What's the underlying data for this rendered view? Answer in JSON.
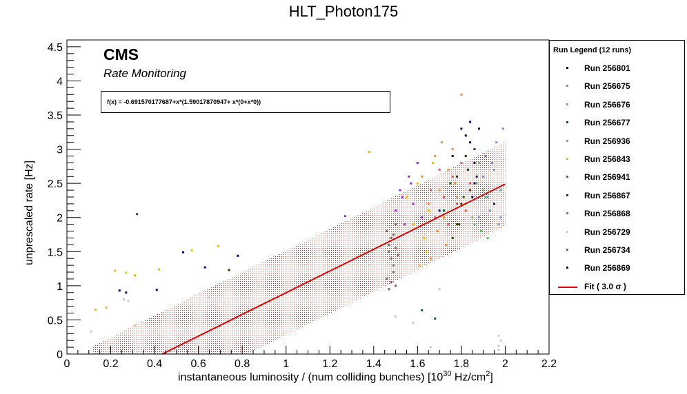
{
  "chart_data": {
    "type": "scatter",
    "title": "HLT_Photon175",
    "xlabel": "instantaneous luminosity / (num colliding bunches) [10",
    "xlabel_sup": "30",
    "xlabel_mid": " Hz/cm",
    "xlabel_sup2": "2",
    "xlabel_end": "]",
    "ylabel": "unprescaled rate [Hz]",
    "xlim": [
      0,
      2.2
    ],
    "ylim": [
      0,
      4.6
    ],
    "x_ticks": [
      "0",
      "0.2",
      "0.4",
      "0.6",
      "0.8",
      "1",
      "1.2",
      "1.4",
      "1.6",
      "1.8",
      "2",
      "2.2"
    ],
    "y_ticks": [
      "0",
      "0.5",
      "1",
      "1.5",
      "2",
      "2.5",
      "3",
      "3.5",
      "4",
      "4.5"
    ],
    "cms_label": "CMS",
    "cms_sublabel": "Rate Monitoring",
    "fit": {
      "formula_text": "f(x) = -0.691570177687+x*(1.59017870947+ x*(0+x*0))",
      "intercept": -0.691570177687,
      "slope": 1.59017870947,
      "band_sigma": 3.0,
      "band_halfwidth": 0.62,
      "x_range": [
        0.12,
        2.0
      ],
      "color": "#e60000",
      "band_color": "#c0392b"
    },
    "legend": {
      "title": "Run Legend (12 runs)",
      "entries": [
        {
          "label": "Run 256801",
          "color": "#000080"
        },
        {
          "label": "Run 256675",
          "color": "#6a8fe0"
        },
        {
          "label": "Run 256676",
          "color": "#5cc05c"
        },
        {
          "label": "Run 256677",
          "color": "#006400"
        },
        {
          "label": "Run 256936",
          "color": "#f08c30"
        },
        {
          "label": "Run 256843",
          "color": "#f5b800"
        },
        {
          "label": "Run 256941",
          "color": "#8a2be2"
        },
        {
          "label": "Run 256867",
          "color": "#3c2a00"
        },
        {
          "label": "Run 256868",
          "color": "#e05050"
        },
        {
          "label": "Run 256729",
          "color": "#c8c8c8"
        },
        {
          "label": "Run 256734",
          "color": "#7a5c5c"
        },
        {
          "label": "Run 256869",
          "color": "#000060"
        }
      ],
      "fit_label": "Fit ( 3.0  σ )"
    },
    "series": [
      {
        "name": "Run 256801",
        "color": "#000080",
        "points": [
          [
            0.24,
            0.93
          ],
          [
            0.27,
            0.9
          ],
          [
            0.53,
            1.49
          ],
          [
            0.41,
            0.94
          ],
          [
            0.63,
            1.27
          ],
          [
            0.78,
            1.44
          ],
          [
            1.76,
            2.9
          ],
          [
            1.8,
            3.3
          ],
          [
            1.84,
            3.4
          ],
          [
            1.86,
            2.5
          ],
          [
            1.95,
            2.2
          ],
          [
            1.7,
            2.1
          ]
        ]
      },
      {
        "name": "Run 256675",
        "color": "#6a8fe0",
        "points": [
          [
            1.88,
            2.0
          ],
          [
            1.9,
            2.6
          ],
          [
            1.92,
            2.3
          ],
          [
            1.94,
            2.8
          ],
          [
            1.96,
            3.1
          ],
          [
            1.98,
            2.4
          ],
          [
            1.99,
            3.3
          ],
          [
            1.97,
            1.9
          ],
          [
            1.93,
            2.1
          ],
          [
            1.91,
            2.9
          ],
          [
            1.95,
            2.7
          ],
          [
            1.98,
            2.0
          ]
        ]
      },
      {
        "name": "Run 256676",
        "color": "#5cc05c",
        "points": [
          [
            1.82,
            2.2
          ],
          [
            1.85,
            2.0
          ],
          [
            1.87,
            2.5
          ],
          [
            1.89,
            1.8
          ],
          [
            1.91,
            2.3
          ],
          [
            1.83,
            2.7
          ],
          [
            1.86,
            1.9
          ],
          [
            1.88,
            2.8
          ],
          [
            1.92,
            1.7
          ],
          [
            1.9,
            2.4
          ]
        ]
      },
      {
        "name": "Run 256677",
        "color": "#006400",
        "points": [
          [
            0.32,
            2.05
          ],
          [
            1.62,
            0.64
          ],
          [
            1.68,
            0.52
          ],
          [
            1.72,
            2.1
          ],
          [
            1.75,
            2.5
          ],
          [
            1.78,
            1.9
          ],
          [
            1.81,
            2.3
          ],
          [
            1.76,
            1.7
          ]
        ]
      },
      {
        "name": "Run 256936",
        "color": "#f08c30",
        "points": [
          [
            1.62,
            2.6
          ],
          [
            1.65,
            2.2
          ],
          [
            1.68,
            2.9
          ],
          [
            1.7,
            2.4
          ],
          [
            1.72,
            2.0
          ],
          [
            1.74,
            2.7
          ],
          [
            1.76,
            3.0
          ],
          [
            1.78,
            2.3
          ],
          [
            1.8,
            3.8
          ],
          [
            1.73,
            1.6
          ],
          [
            1.69,
            1.8
          ],
          [
            1.77,
            2.5
          ],
          [
            1.66,
            1.4
          ],
          [
            1.71,
            3.1
          ]
        ]
      },
      {
        "name": "Run 256843",
        "color": "#f5b800",
        "points": [
          [
            0.13,
            0.65
          ],
          [
            0.18,
            0.68
          ],
          [
            0.22,
            1.22
          ],
          [
            0.27,
            1.19
          ],
          [
            0.31,
            1.15
          ],
          [
            0.42,
            1.24
          ],
          [
            0.57,
            1.52
          ],
          [
            0.69,
            1.58
          ],
          [
            1.38,
            2.96
          ],
          [
            1.55,
            2.3
          ],
          [
            1.58,
            1.9
          ],
          [
            1.6,
            2.5
          ],
          [
            1.63,
            1.7
          ],
          [
            1.65,
            2.1
          ],
          [
            1.67,
            2.8
          ],
          [
            1.61,
            1.3
          ],
          [
            1.64,
            1.5
          ]
        ]
      },
      {
        "name": "Run 256941",
        "color": "#8a2be2",
        "points": [
          [
            1.27,
            2.02
          ],
          [
            1.5,
            2.1
          ],
          [
            1.52,
            2.4
          ],
          [
            1.54,
            1.9
          ],
          [
            1.56,
            2.6
          ],
          [
            1.58,
            2.2
          ],
          [
            1.6,
            2.8
          ],
          [
            1.62,
            2.0
          ],
          [
            1.57,
            2.5
          ],
          [
            1.53,
            2.3
          ]
        ]
      },
      {
        "name": "Run 256867",
        "color": "#3c2a00",
        "points": [
          [
            0.74,
            1.23
          ],
          [
            1.78,
            2.6
          ],
          [
            1.8,
            2.2
          ],
          [
            1.82,
            2.9
          ],
          [
            1.84,
            2.4
          ],
          [
            1.86,
            3.0
          ],
          [
            1.79,
            1.9
          ],
          [
            1.83,
            2.7
          ]
        ]
      },
      {
        "name": "Run 256868",
        "color": "#e05050",
        "points": [
          [
            1.66,
            2.4
          ],
          [
            1.68,
            2.0
          ],
          [
            1.7,
            2.7
          ],
          [
            1.72,
            2.3
          ],
          [
            1.74,
            1.9
          ],
          [
            1.76,
            2.6
          ],
          [
            1.78,
            2.2
          ],
          [
            1.8,
            2.8
          ],
          [
            1.82,
            2.1
          ],
          [
            1.84,
            2.5
          ]
        ]
      },
      {
        "name": "Run 256729",
        "color": "#c8c8c8",
        "points": [
          [
            0.11,
            0.33
          ],
          [
            0.26,
            0.8
          ],
          [
            0.28,
            0.78
          ],
          [
            0.31,
            0.42
          ],
          [
            0.44,
            0.58
          ],
          [
            0.65,
            0.83
          ],
          [
            1.5,
            0.55
          ],
          [
            1.58,
            0.45
          ],
          [
            1.66,
            0.1
          ],
          [
            1.97,
            0.12
          ],
          [
            1.97,
            0.27
          ],
          [
            1.98,
            0.2
          ],
          [
            1.97,
            0.06
          ],
          [
            1.7,
            0.95
          ]
        ]
      },
      {
        "name": "Run 256734",
        "color": "#7a5c5c",
        "points": [
          [
            1.46,
            1.8
          ],
          [
            1.47,
            1.6
          ],
          [
            1.48,
            1.4
          ],
          [
            1.49,
            1.2
          ],
          [
            1.5,
            1.0
          ],
          [
            1.47,
            1.5
          ],
          [
            1.48,
            1.7
          ],
          [
            1.49,
            1.3
          ],
          [
            1.5,
            1.9
          ],
          [
            1.46,
            1.1
          ],
          [
            1.51,
            1.45
          ],
          [
            1.47,
            0.95
          ],
          [
            1.49,
            1.75
          ],
          [
            1.48,
            1.05
          ],
          [
            1.5,
            1.55
          ]
        ]
      },
      {
        "name": "Run 256869",
        "color": "#000060",
        "points": [
          [
            1.82,
            3.2
          ],
          [
            1.84,
            3.1
          ],
          [
            1.86,
            2.8
          ],
          [
            1.88,
            3.3
          ],
          [
            1.85,
            2.3
          ],
          [
            1.87,
            2.6
          ]
        ]
      }
    ]
  }
}
